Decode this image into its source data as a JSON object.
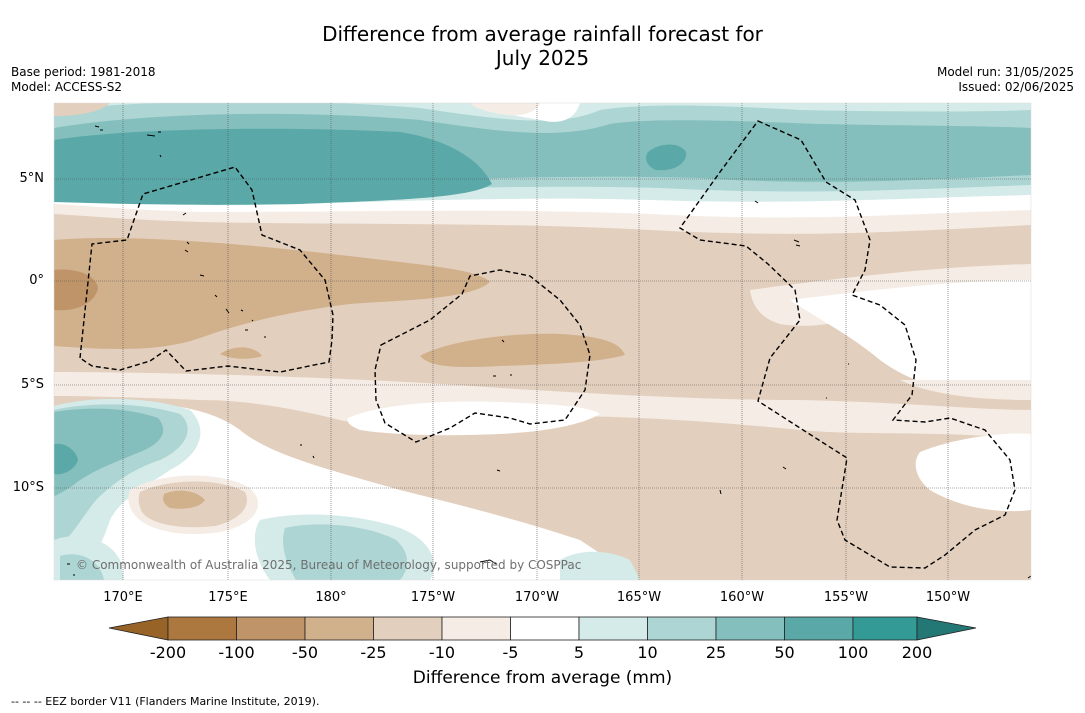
{
  "title_line1": "Difference from average rainfall forecast for",
  "title_line2": "July 2025",
  "base_period": "Base period: 1981-2018",
  "model": "Model: ACCESS-S2",
  "model_run": "Model run: 31/05/2025",
  "issued": "Issued: 02/06/2025",
  "lat_labels": [
    "5°N",
    "0°",
    "5°S",
    "10°S"
  ],
  "lon_labels": [
    "170°E",
    "175°E",
    "180°",
    "175°W",
    "170°W",
    "165°W",
    "160°W",
    "155°W",
    "150°W"
  ],
  "colorbar": {
    "ticks": [
      "-200",
      "-100",
      "-50",
      "-25",
      "-10",
      "-5",
      "5",
      "10",
      "25",
      "50",
      "100",
      "200"
    ],
    "colors": [
      "#ad7840",
      "#bf9468",
      "#d1b08c",
      "#e3cfbd",
      "#f4ece5",
      "#ffffff",
      "#d5ebe9",
      "#acd5d3",
      "#84bfbd",
      "#5aa9a8",
      "#349a96"
    ],
    "under_color": "#986327",
    "over_color": "#237876",
    "label": "Difference from average (mm)"
  },
  "copyright": "© Commonwealth of Australia 2025, Bureau of Meteorology, supported by COSPPac",
  "footnote": "--  --  -- EEZ border V11 (Flanders Marine Institute, 2019)."
}
